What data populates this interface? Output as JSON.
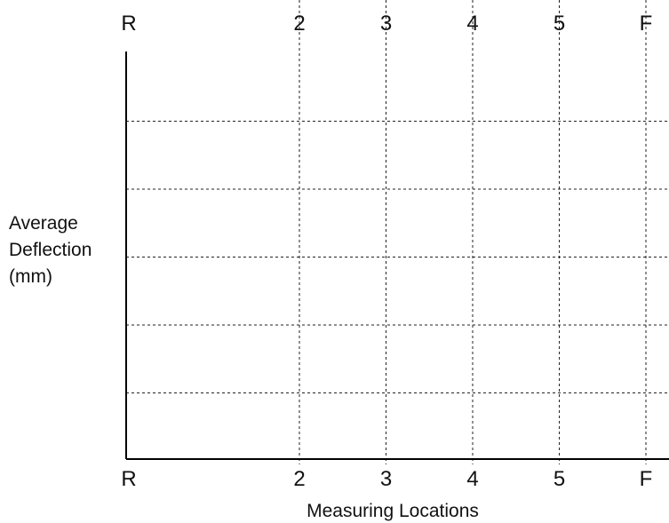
{
  "chart_data": {
    "type": "line",
    "title": "",
    "xlabel": "Measuring Locations",
    "ylabel_lines": [
      "Average",
      "Deflection",
      "(mm)"
    ],
    "categories": [
      "R",
      "2",
      "3",
      "4",
      "5",
      "F"
    ],
    "x_positions": [
      0,
      2,
      3,
      4,
      5,
      6
    ],
    "series": [],
    "grid": true,
    "y_gridline_count": 5,
    "top_tick_labels": true,
    "bottom_tick_labels": true
  }
}
